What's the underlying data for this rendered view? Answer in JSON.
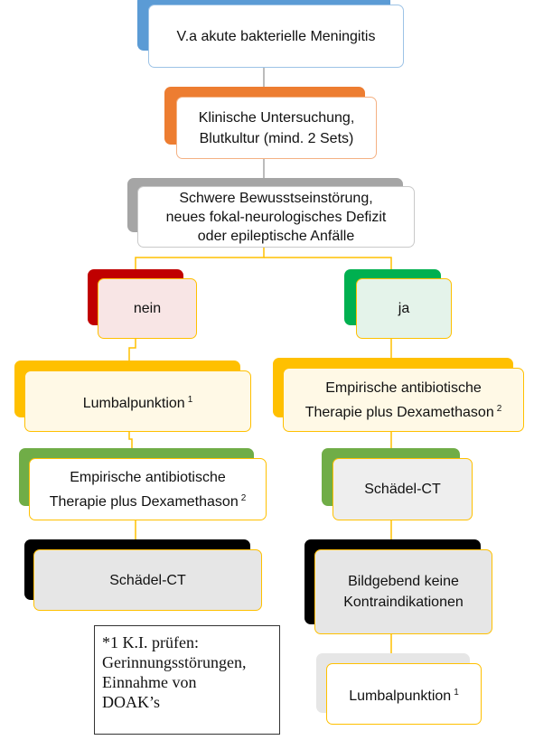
{
  "nodes": {
    "start": {
      "text": "V.a akute bakterielle Meningitis",
      "back": "#5b9bd5",
      "border": "#9dc3e6",
      "fill": "#ffffff"
    },
    "exam": {
      "line1": "Klinische Untersuchung,",
      "line2": "Blutkultur (mind. 2 Sets)",
      "back": "#ed7d31",
      "border": "#f4b183",
      "fill": "#ffffff"
    },
    "question": {
      "line1": "Schwere Bewusstseinstörung,",
      "line2": "neues fokal-neurologisches Defizit",
      "line3": "oder epileptische Anfälle",
      "back": "#a5a5a5",
      "border": "#c9c9c9",
      "fill": "#ffffff"
    },
    "no": {
      "text": "nein",
      "back": "#c00000",
      "border": "#ffc000",
      "fill": "#f8e5e5"
    },
    "yes": {
      "text": "ja",
      "back": "#00b050",
      "border": "#ffc000",
      "fill": "#e4f3ea"
    },
    "lumbar_left": {
      "text": "Lumbalpunktion",
      "sup": "1",
      "back": "#ffc000",
      "border": "#ffc000",
      "fill": "#fff9e6"
    },
    "therapy_left": {
      "line1": "Empirische antibiotische",
      "line2": "Therapie plus Dexamethason",
      "sup": "2",
      "back": "#70ad47",
      "border": "#ffc000",
      "fill": "#ffffff"
    },
    "ct_left": {
      "text": "Schädel-CT",
      "back": "#000000",
      "border": "#ffc000",
      "fill": "#e6e6e6"
    },
    "therapy_right": {
      "line1": "Empirische antibiotische",
      "line2": "Therapie plus Dexamethason",
      "sup": "2",
      "back": "#ffc000",
      "border": "#ffc000",
      "fill": "#fff9e6"
    },
    "ct_right": {
      "text": "Schädel-CT",
      "back": "#70ad47",
      "border": "#ffc000",
      "fill": "#eeeeee"
    },
    "imaging": {
      "line1": "Bildgebend keine",
      "line2": "Kontraindikationen",
      "back": "#000000",
      "border": "#ffc000",
      "fill": "#e6e6e6"
    },
    "lumbar_right": {
      "text": "Lumbalpunktion",
      "sup": "1",
      "back": "#e6e6e6",
      "border": "#ffc000",
      "fill": "#ffffff"
    }
  },
  "note": {
    "line1": "*1 K.I. prüfen:",
    "line2": "Gerinnungsstörungen,",
    "line3": "Einnahme von",
    "line4": "DOAK’s"
  },
  "colors": {
    "connector_gray": "#a5a5a5",
    "connector_gold": "#ffc000"
  }
}
